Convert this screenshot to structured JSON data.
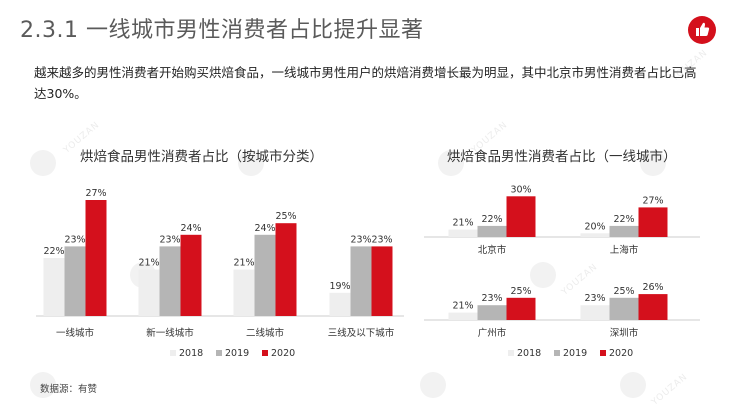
{
  "header": {
    "title": "2.3.1 一线城市男性消费者占比提升显著"
  },
  "intro_text": "越来越多的男性消费者开始购买烘焙食品，一线城市男性用户的烘焙消费增长最为明显，其中北京市男性消费者占比已高达30%。",
  "watermark_text": "YOUZAN",
  "source": "数据源：有赞",
  "colors": {
    "s2018": "#eeeeee",
    "s2019": "#b5b5b5",
    "s2020": "#d4101c",
    "axis": "#cccccc",
    "logo": "#d4101c"
  },
  "chart_data": [
    {
      "type": "bar",
      "title": "烘焙食品男性消费者占比（按城市分类）",
      "categories": [
        "一线城市",
        "新一线城市",
        "二线城市",
        "三线及以下城市"
      ],
      "series": [
        {
          "name": "2018",
          "values": [
            22,
            21,
            21,
            19
          ]
        },
        {
          "name": "2019",
          "values": [
            23,
            23,
            24,
            23
          ]
        },
        {
          "name": "2020",
          "values": [
            27,
            24,
            25,
            23
          ]
        }
      ],
      "value_suffix": "%",
      "legend_position": "bottom",
      "grid": false
    },
    {
      "type": "bar",
      "title": "烘焙食品男性消费者占比（一线城市）",
      "categories": [
        "北京市",
        "上海市",
        "广州市",
        "深圳市"
      ],
      "series": [
        {
          "name": "2018",
          "values": [
            21,
            20,
            21,
            23
          ]
        },
        {
          "name": "2019",
          "values": [
            22,
            22,
            23,
            25
          ]
        },
        {
          "name": "2020",
          "values": [
            30,
            27,
            25,
            26
          ]
        }
      ],
      "value_suffix": "%",
      "legend_position": "bottom",
      "grid": false
    }
  ]
}
